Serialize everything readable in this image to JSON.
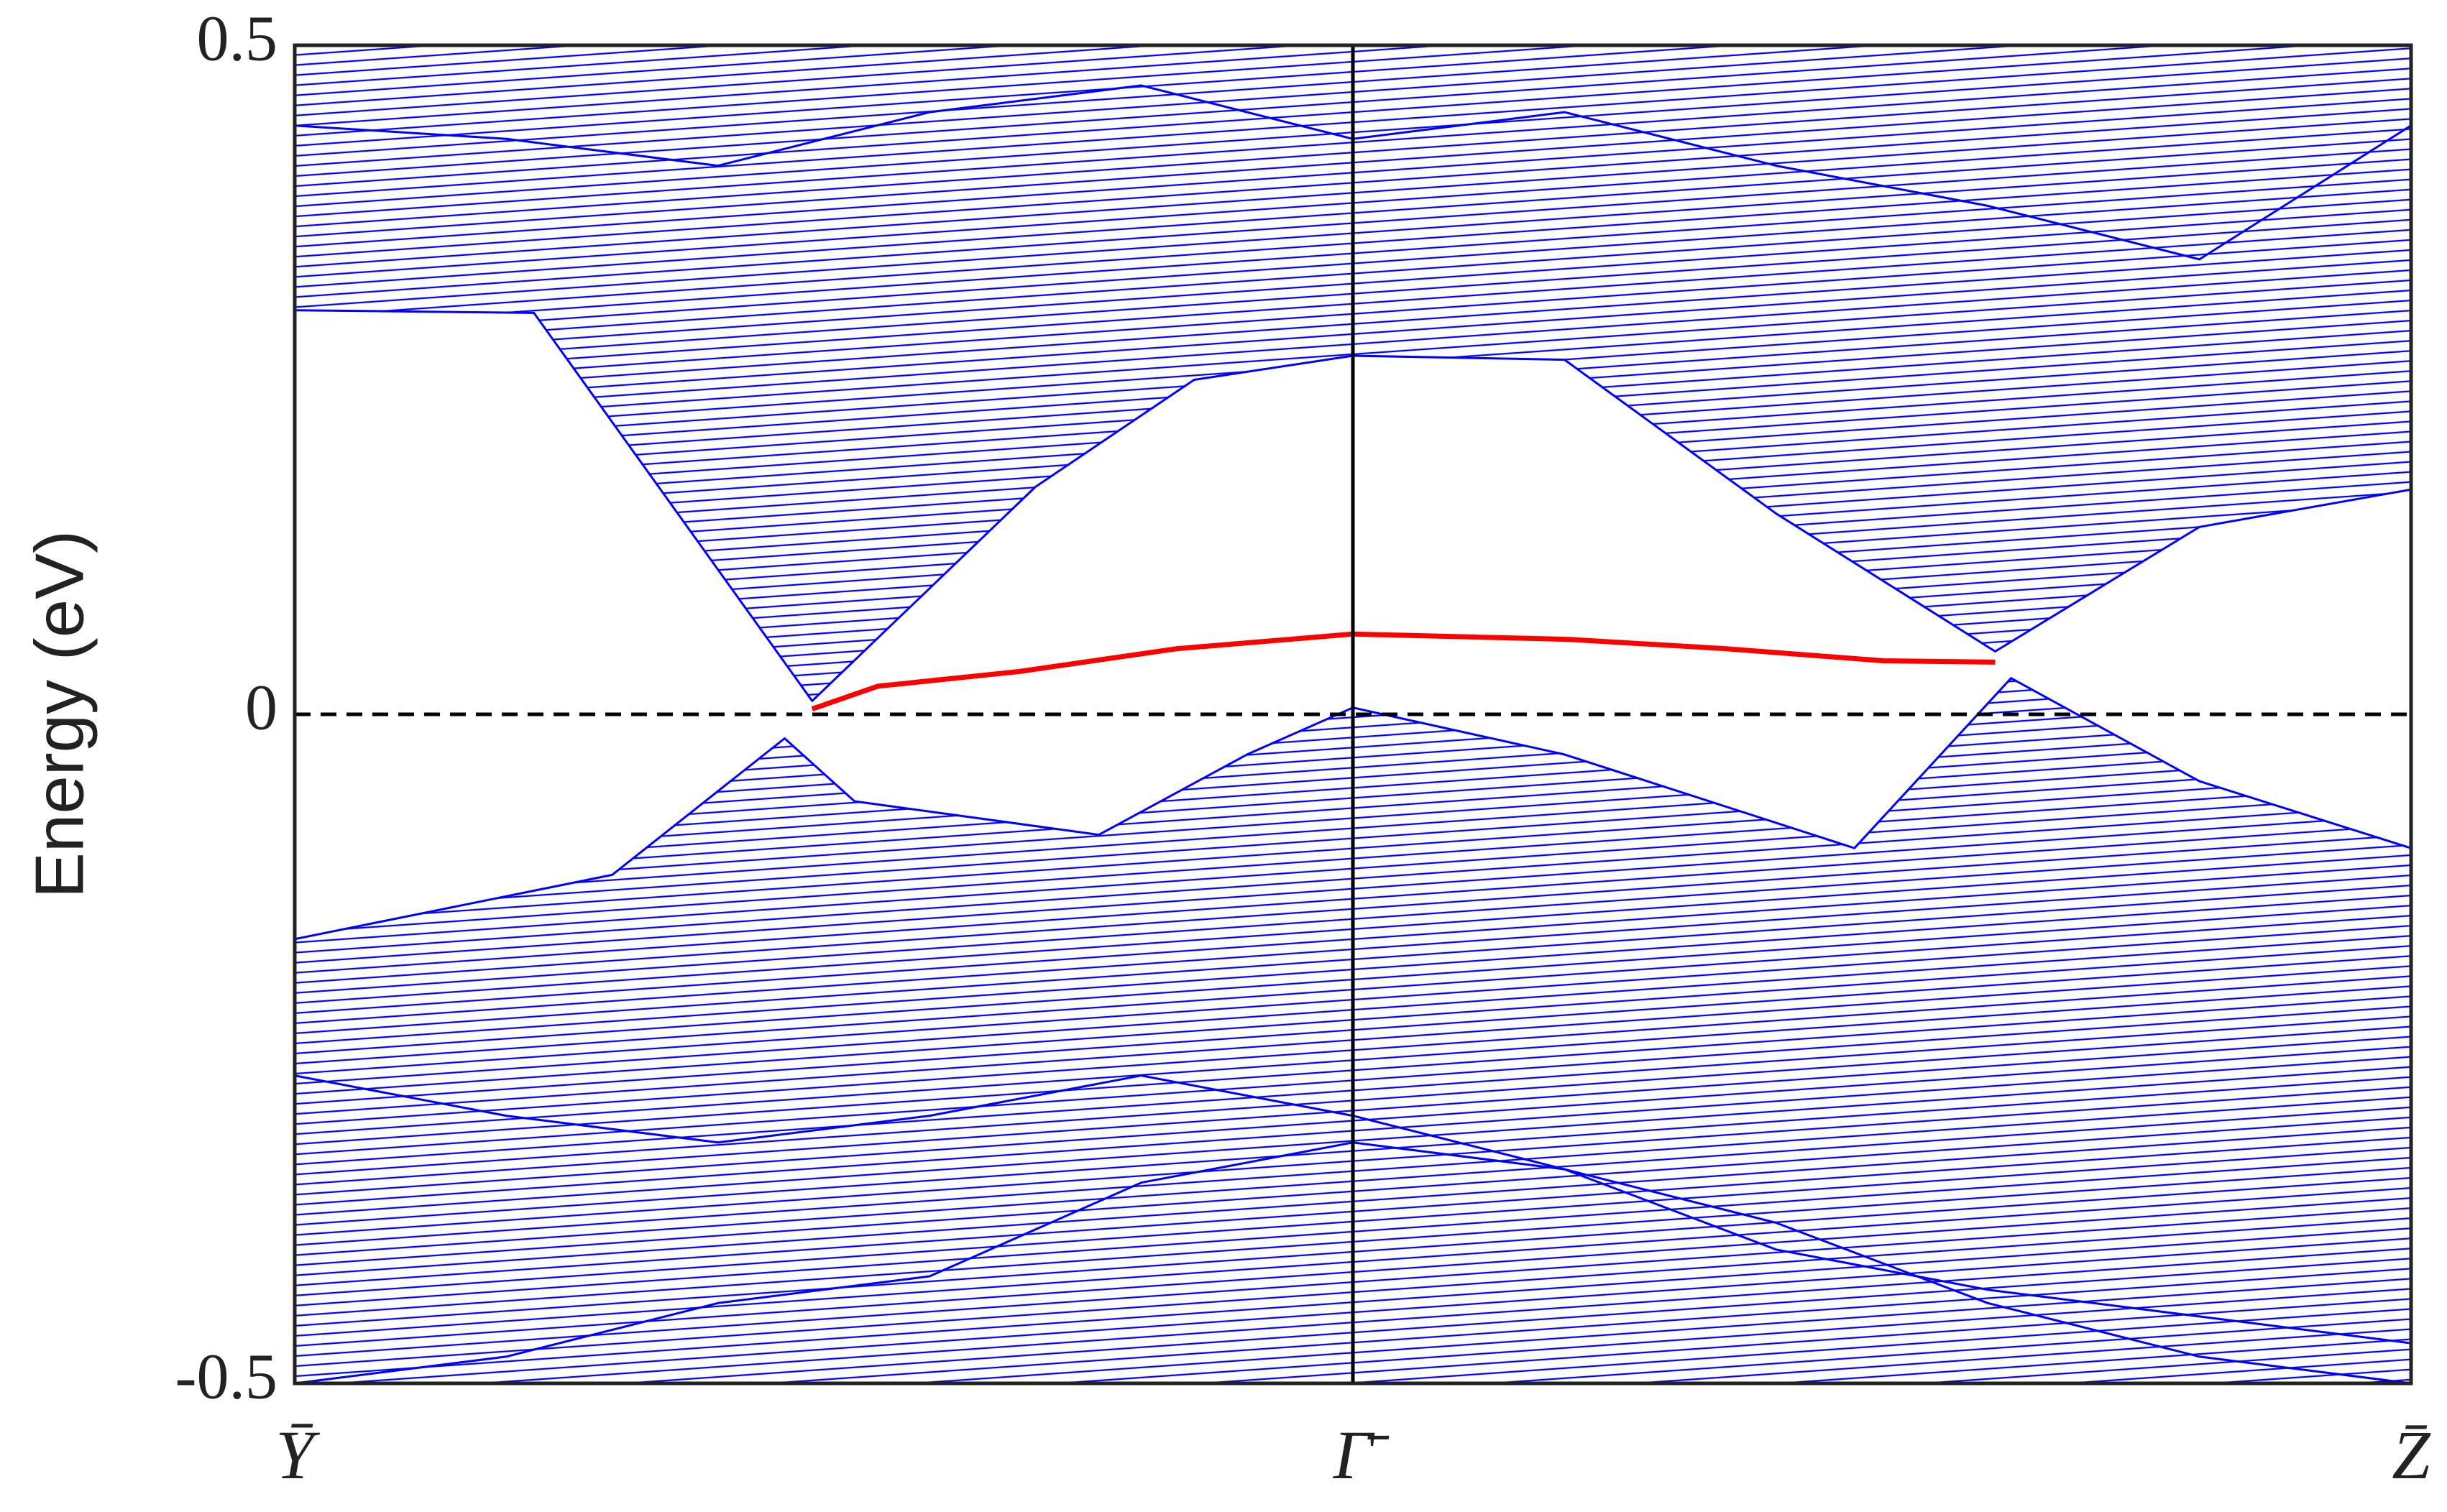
{
  "chart_data": {
    "type": "line",
    "ylabel": "Energy (eV)",
    "xlim": [
      0,
      2
    ],
    "xticks": [
      {
        "value": 0,
        "label": "Ȳ"
      },
      {
        "value": 1,
        "label": "Γ̄"
      },
      {
        "value": 2,
        "label": "Z̄"
      }
    ],
    "ylim": [
      -0.5,
      0.5
    ],
    "yticks": [
      -0.5,
      0,
      0.5
    ],
    "fermi_level": 0,
    "series": [
      {
        "color": "#0000ff",
        "fill_to": "top",
        "x": [
          0,
          0.226,
          0.489,
          0.7,
          0.85,
          1.0,
          1.2,
          1.4,
          1.607,
          1.8,
          2.0
        ],
        "values": [
          0.302,
          0.3,
          0.01,
          0.17,
          0.25,
          0.268,
          0.265,
          0.15,
          0.047,
          0.14,
          0.168
        ]
      },
      {
        "color": "#0000ff",
        "fill_to": "bottom",
        "x": [
          0,
          0.3,
          0.463,
          0.529,
          0.76,
          0.9,
          1.0,
          1.2,
          1.474,
          1.622,
          1.8,
          2.0
        ],
        "values": [
          -0.168,
          -0.12,
          -0.018,
          -0.065,
          -0.09,
          -0.03,
          0.005,
          -0.03,
          -0.1,
          0.027,
          -0.05,
          -0.1
        ]
      },
      {
        "color": "#0000ff",
        "fill_to": "none",
        "x": [
          0,
          0.2,
          0.4,
          0.6,
          0.8,
          1.0,
          1.2,
          1.4,
          1.6,
          1.8,
          2.0
        ],
        "values": [
          0.44,
          0.43,
          0.41,
          0.45,
          0.47,
          0.43,
          0.45,
          0.41,
          0.38,
          0.34,
          0.44
        ]
      },
      {
        "color": "#0000ff",
        "fill_to": "none",
        "x": [
          0,
          0.2,
          0.4,
          0.6,
          0.8,
          1.0,
          1.2,
          1.4,
          1.6,
          1.8,
          2.0
        ],
        "values": [
          -0.27,
          -0.3,
          -0.32,
          -0.3,
          -0.27,
          -0.3,
          -0.34,
          -0.4,
          -0.43,
          -0.45,
          -0.47
        ]
      },
      {
        "color": "#0000ff",
        "fill_to": "none",
        "x": [
          0,
          0.2,
          0.4,
          0.6,
          0.8,
          1.0,
          1.2,
          1.4,
          1.6,
          1.8,
          2.0
        ],
        "values": [
          -0.5,
          -0.48,
          -0.44,
          -0.42,
          -0.35,
          -0.32,
          -0.34,
          -0.38,
          -0.44,
          -0.48,
          -0.5
        ]
      },
      {
        "color": "#ff0000",
        "fill_to": "none",
        "x": [
          0.489,
          0.551,
          0.685,
          0.833,
          1.0,
          1.204,
          1.353,
          1.501,
          1.607
        ],
        "values": [
          0.004,
          0.021,
          0.032,
          0.049,
          0.06,
          0.056,
          0.049,
          0.04,
          0.039
        ]
      }
    ]
  }
}
